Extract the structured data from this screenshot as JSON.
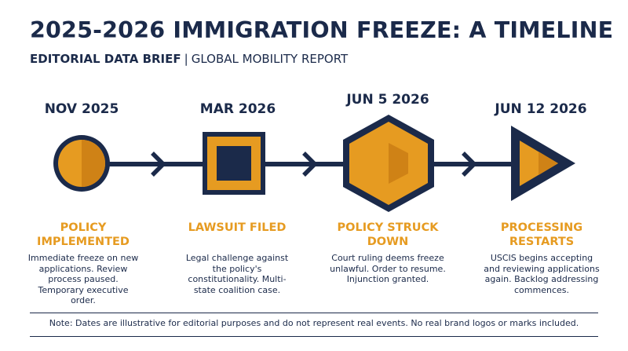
{
  "header": {
    "title": "2025-2026 IMMIGRATION FREEZE: A TIMELINE",
    "subtitle_strong": "EDITORIAL DATA BRIEF",
    "subtitle_sep": "|",
    "subtitle_light": "GLOBAL MOBILITY REPORT"
  },
  "colors": {
    "navy": "#1b2a4a",
    "gold": "#e69b21",
    "gold_dark": "#cf8216"
  },
  "events": [
    {
      "date": "NOV 2025",
      "shape": "circle-icon",
      "title": "POLICY IMPLEMENTED",
      "description": "Immediate freeze on new applications. Review process paused. Temporary executive order."
    },
    {
      "date": "MAR 2026",
      "shape": "square-icon",
      "title": "LAWSUIT FILED",
      "description": "Legal challenge against the policy's constitutionality. Multi-state coalition case."
    },
    {
      "date": "JUN 5 2026",
      "shape": "hexagon-icon",
      "title": "POLICY STRUCK DOWN",
      "description": "Court ruling deems freeze unlawful. Order to resume. Injunction granted."
    },
    {
      "date": "JUN 12 2026",
      "shape": "triangle-icon",
      "title": "PROCESSING RESTARTS",
      "description": "USCIS begins accepting and reviewing applications again. Backlog addressing commences."
    }
  ],
  "footer": {
    "note": "Note: Dates are illustrative for editorial purposes and do not represent real events. No real brand logos or marks included."
  }
}
